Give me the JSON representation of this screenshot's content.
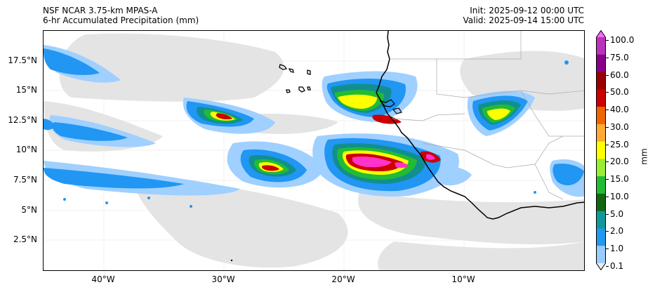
{
  "header": {
    "title_line1": "NSF NCAR 3.75-km MPAS-A",
    "title_line2": "6-hr Accumulated Precipitation (mm)",
    "init": "Init: 2025-09-12 00:00 UTC",
    "valid": "Valid: 2025-09-14 15:00 UTC"
  },
  "map": {
    "lat_labels": [
      "17.5°N",
      "15°N",
      "12.5°N",
      "10°N",
      "7.5°N",
      "5°N",
      "2.5°N"
    ],
    "lon_labels": [
      "40°W",
      "30°W",
      "20°W",
      "10°W"
    ]
  },
  "colorbar": {
    "unit": "mm",
    "levels": [
      "100.0",
      "75.0",
      "60.0",
      "50.0",
      "40.0",
      "30.0",
      "25.0",
      "20.0",
      "15.0",
      "10.0",
      "5.0",
      "2.0",
      "1.0",
      "0.1"
    ],
    "colors": [
      "#ff66ff",
      "#bb33bb",
      "#880088",
      "#990000",
      "#cc0000",
      "#ee6600",
      "#ffaa33",
      "#ffff00",
      "#99ee33",
      "#22bb33",
      "#116611",
      "#119999",
      "#2299ee",
      "#99ccff",
      "#eeeeee"
    ]
  },
  "colors": {
    "light_gray": "#e4e4e4",
    "light_blue": "#9fd0ff",
    "blue": "#2196f3",
    "teal": "#118f8f",
    "green": "#22bb33",
    "yellow": "#ffff00",
    "red": "#cc0000",
    "magenta": "#ff33cc"
  }
}
